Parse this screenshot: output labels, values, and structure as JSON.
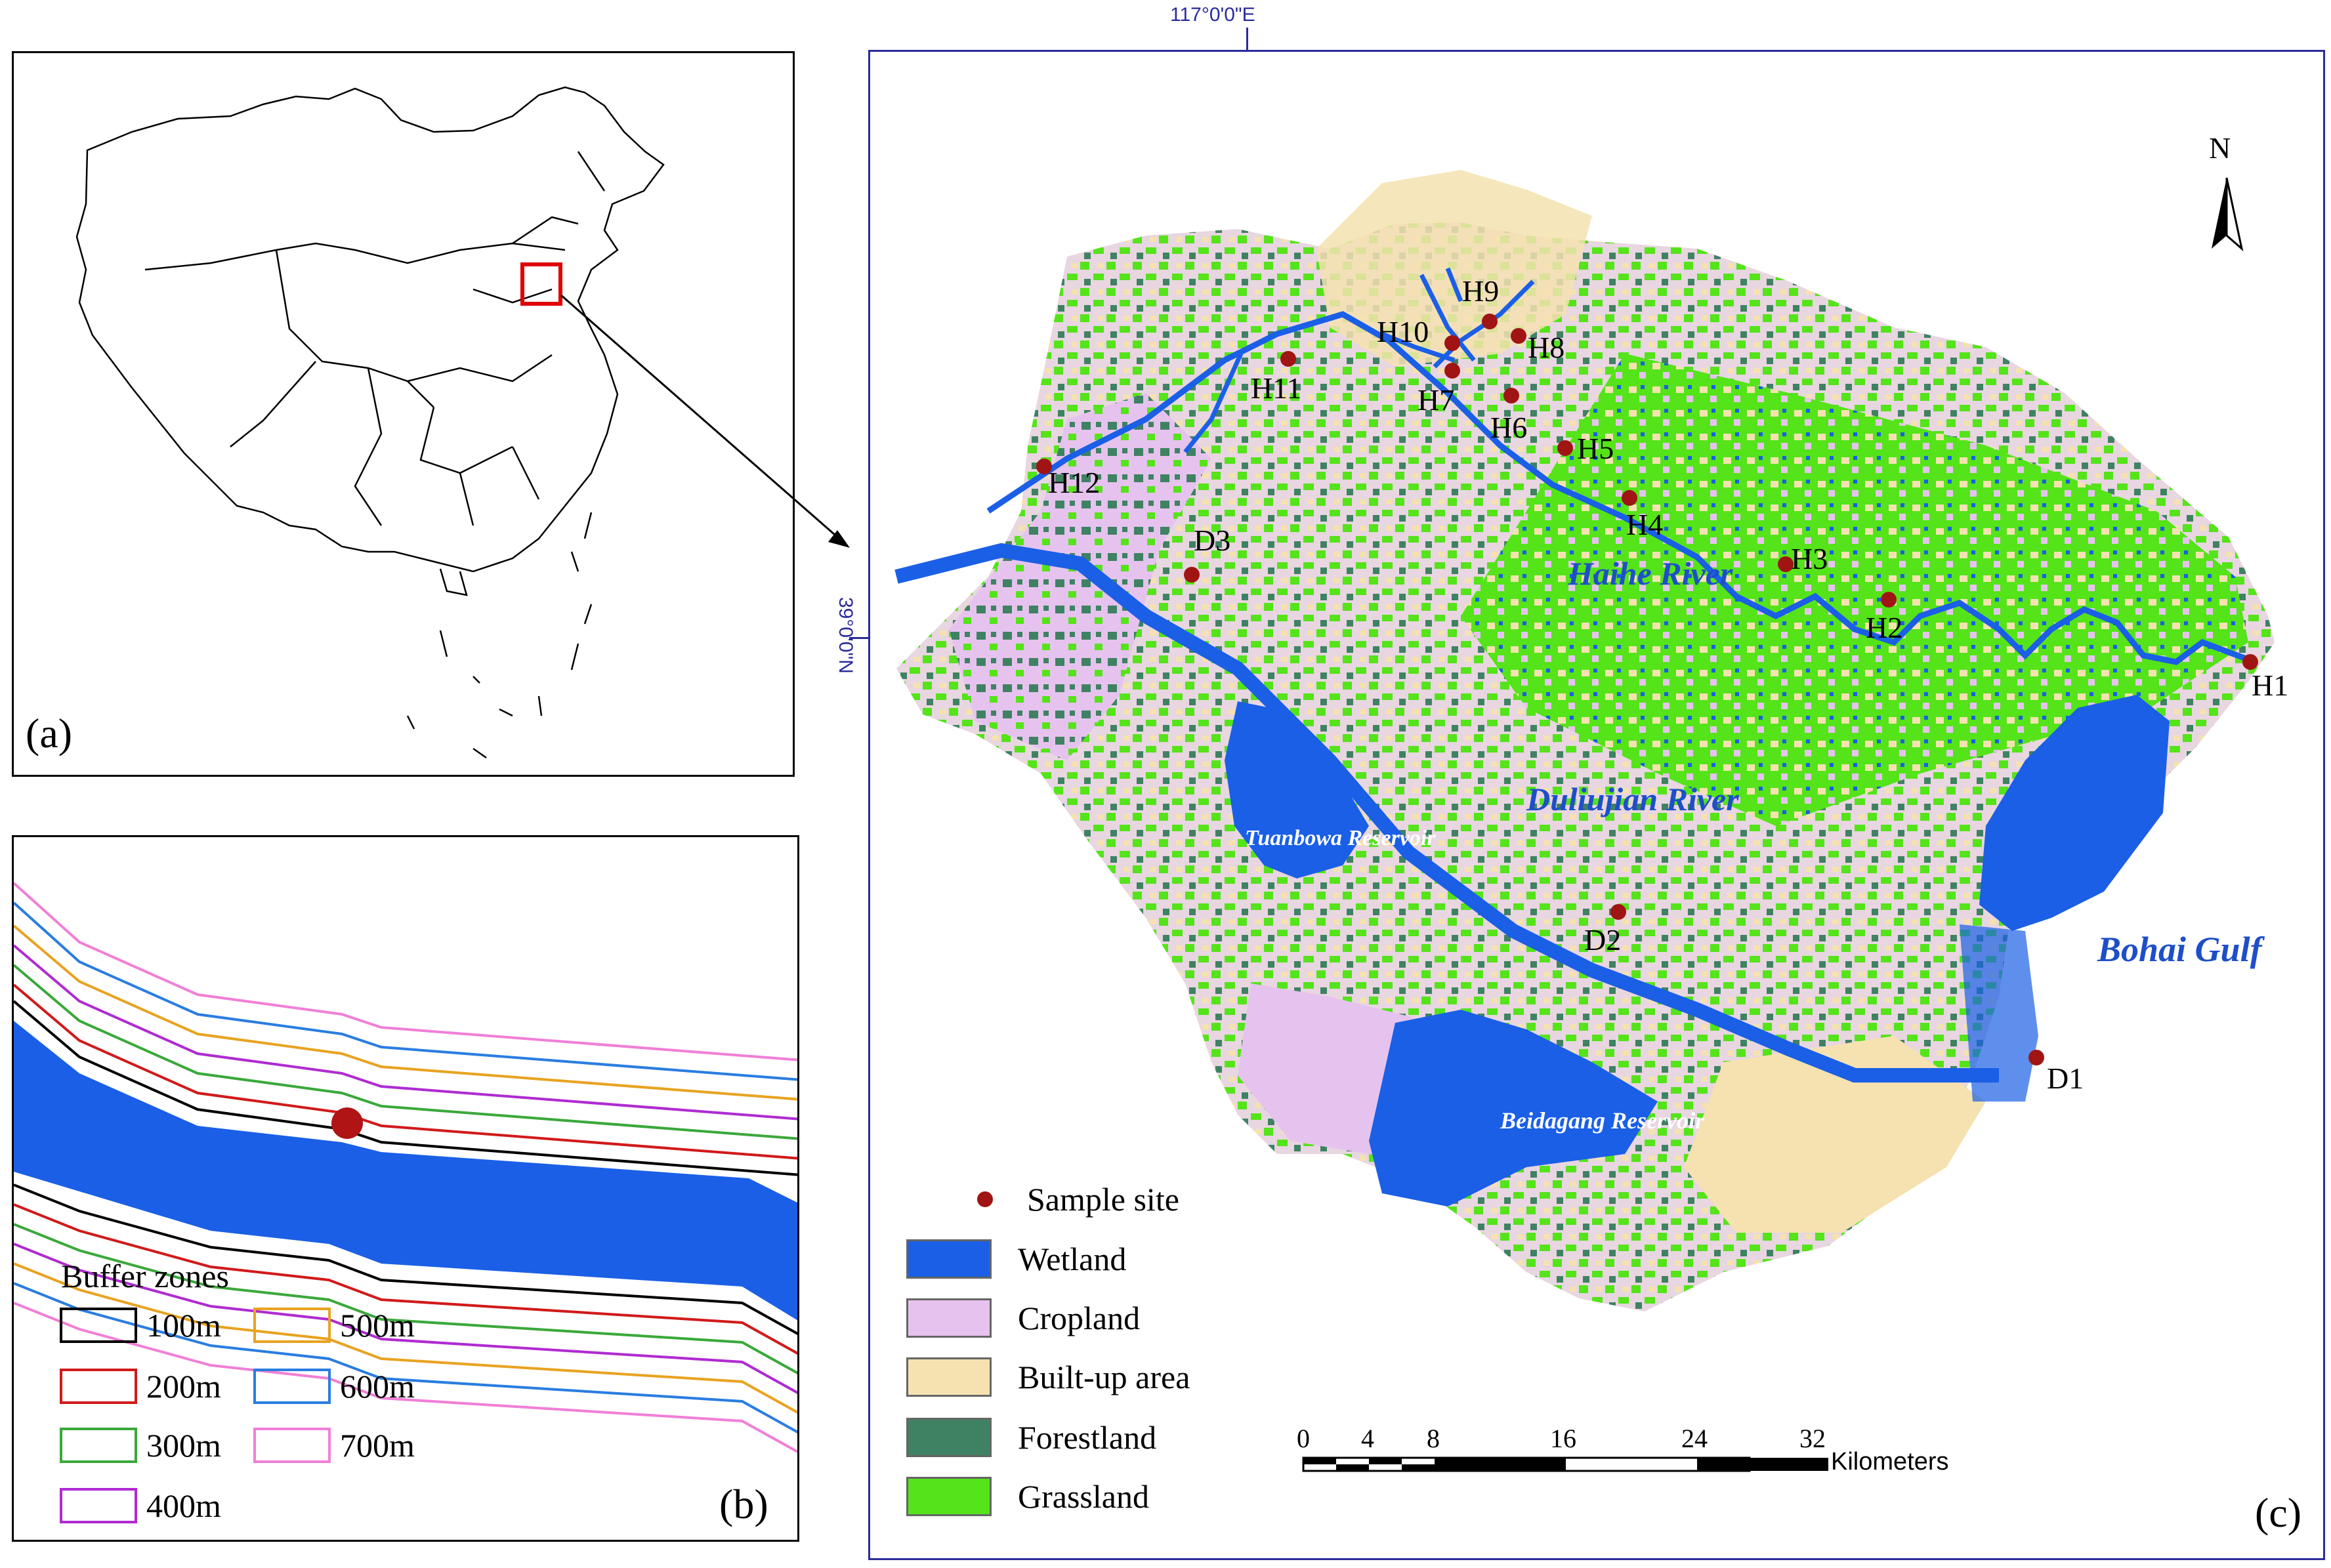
{
  "coords": {
    "lon": "117°0'0\"E",
    "lat": "39°0'0\"N"
  },
  "panel_labels": {
    "a": "(a)",
    "b": "(b)",
    "c": "(c)"
  },
  "north": "N",
  "sites": [
    {
      "id": "H1",
      "label": "H1"
    },
    {
      "id": "H2",
      "label": "H2"
    },
    {
      "id": "H3",
      "label": "H3"
    },
    {
      "id": "H4",
      "label": "H4"
    },
    {
      "id": "H5",
      "label": "H5"
    },
    {
      "id": "H6",
      "label": "H6"
    },
    {
      "id": "H7",
      "label": "H7"
    },
    {
      "id": "H8",
      "label": "H8"
    },
    {
      "id": "H9",
      "label": "H9"
    },
    {
      "id": "H10",
      "label": "H10"
    },
    {
      "id": "H11",
      "label": "H11"
    },
    {
      "id": "H12",
      "label": "H12"
    },
    {
      "id": "D1",
      "label": "D1"
    },
    {
      "id": "D2",
      "label": "D2"
    },
    {
      "id": "D3",
      "label": "D3"
    }
  ],
  "water_labels": {
    "haihe": "Haihe River",
    "duliujian": "Duliujian River",
    "bohai": "Bohai Gulf",
    "tuanbowa": "Tuanbowa Reservoir",
    "beidagang": "Beidagang Reservoir"
  },
  "legend": {
    "sample_site": "Sample site",
    "classes": [
      {
        "label": "Wetland",
        "color": "#1a5fe6"
      },
      {
        "label": "Cropland",
        "color": "#e6c3ee"
      },
      {
        "label": "Built-up area",
        "color": "#f5e2b0"
      },
      {
        "label": "Forestland",
        "color": "#3f8263"
      },
      {
        "label": "Grassland",
        "color": "#55e31a"
      }
    ]
  },
  "scalebar": {
    "ticks": [
      "0",
      "4",
      "8",
      "16",
      "24",
      "32"
    ],
    "unit": "Kilometers"
  },
  "buffer": {
    "title": "Buffer zones",
    "zones": [
      {
        "label": "100m",
        "color": "#000000"
      },
      {
        "label": "200m",
        "color": "#d11a1a"
      },
      {
        "label": "300m",
        "color": "#3aa83a"
      },
      {
        "label": "400m",
        "color": "#b02bd1"
      },
      {
        "label": "500m",
        "color": "#e8a321"
      },
      {
        "label": "600m",
        "color": "#2a7de0"
      },
      {
        "label": "700m",
        "color": "#f07fd6"
      }
    ]
  }
}
